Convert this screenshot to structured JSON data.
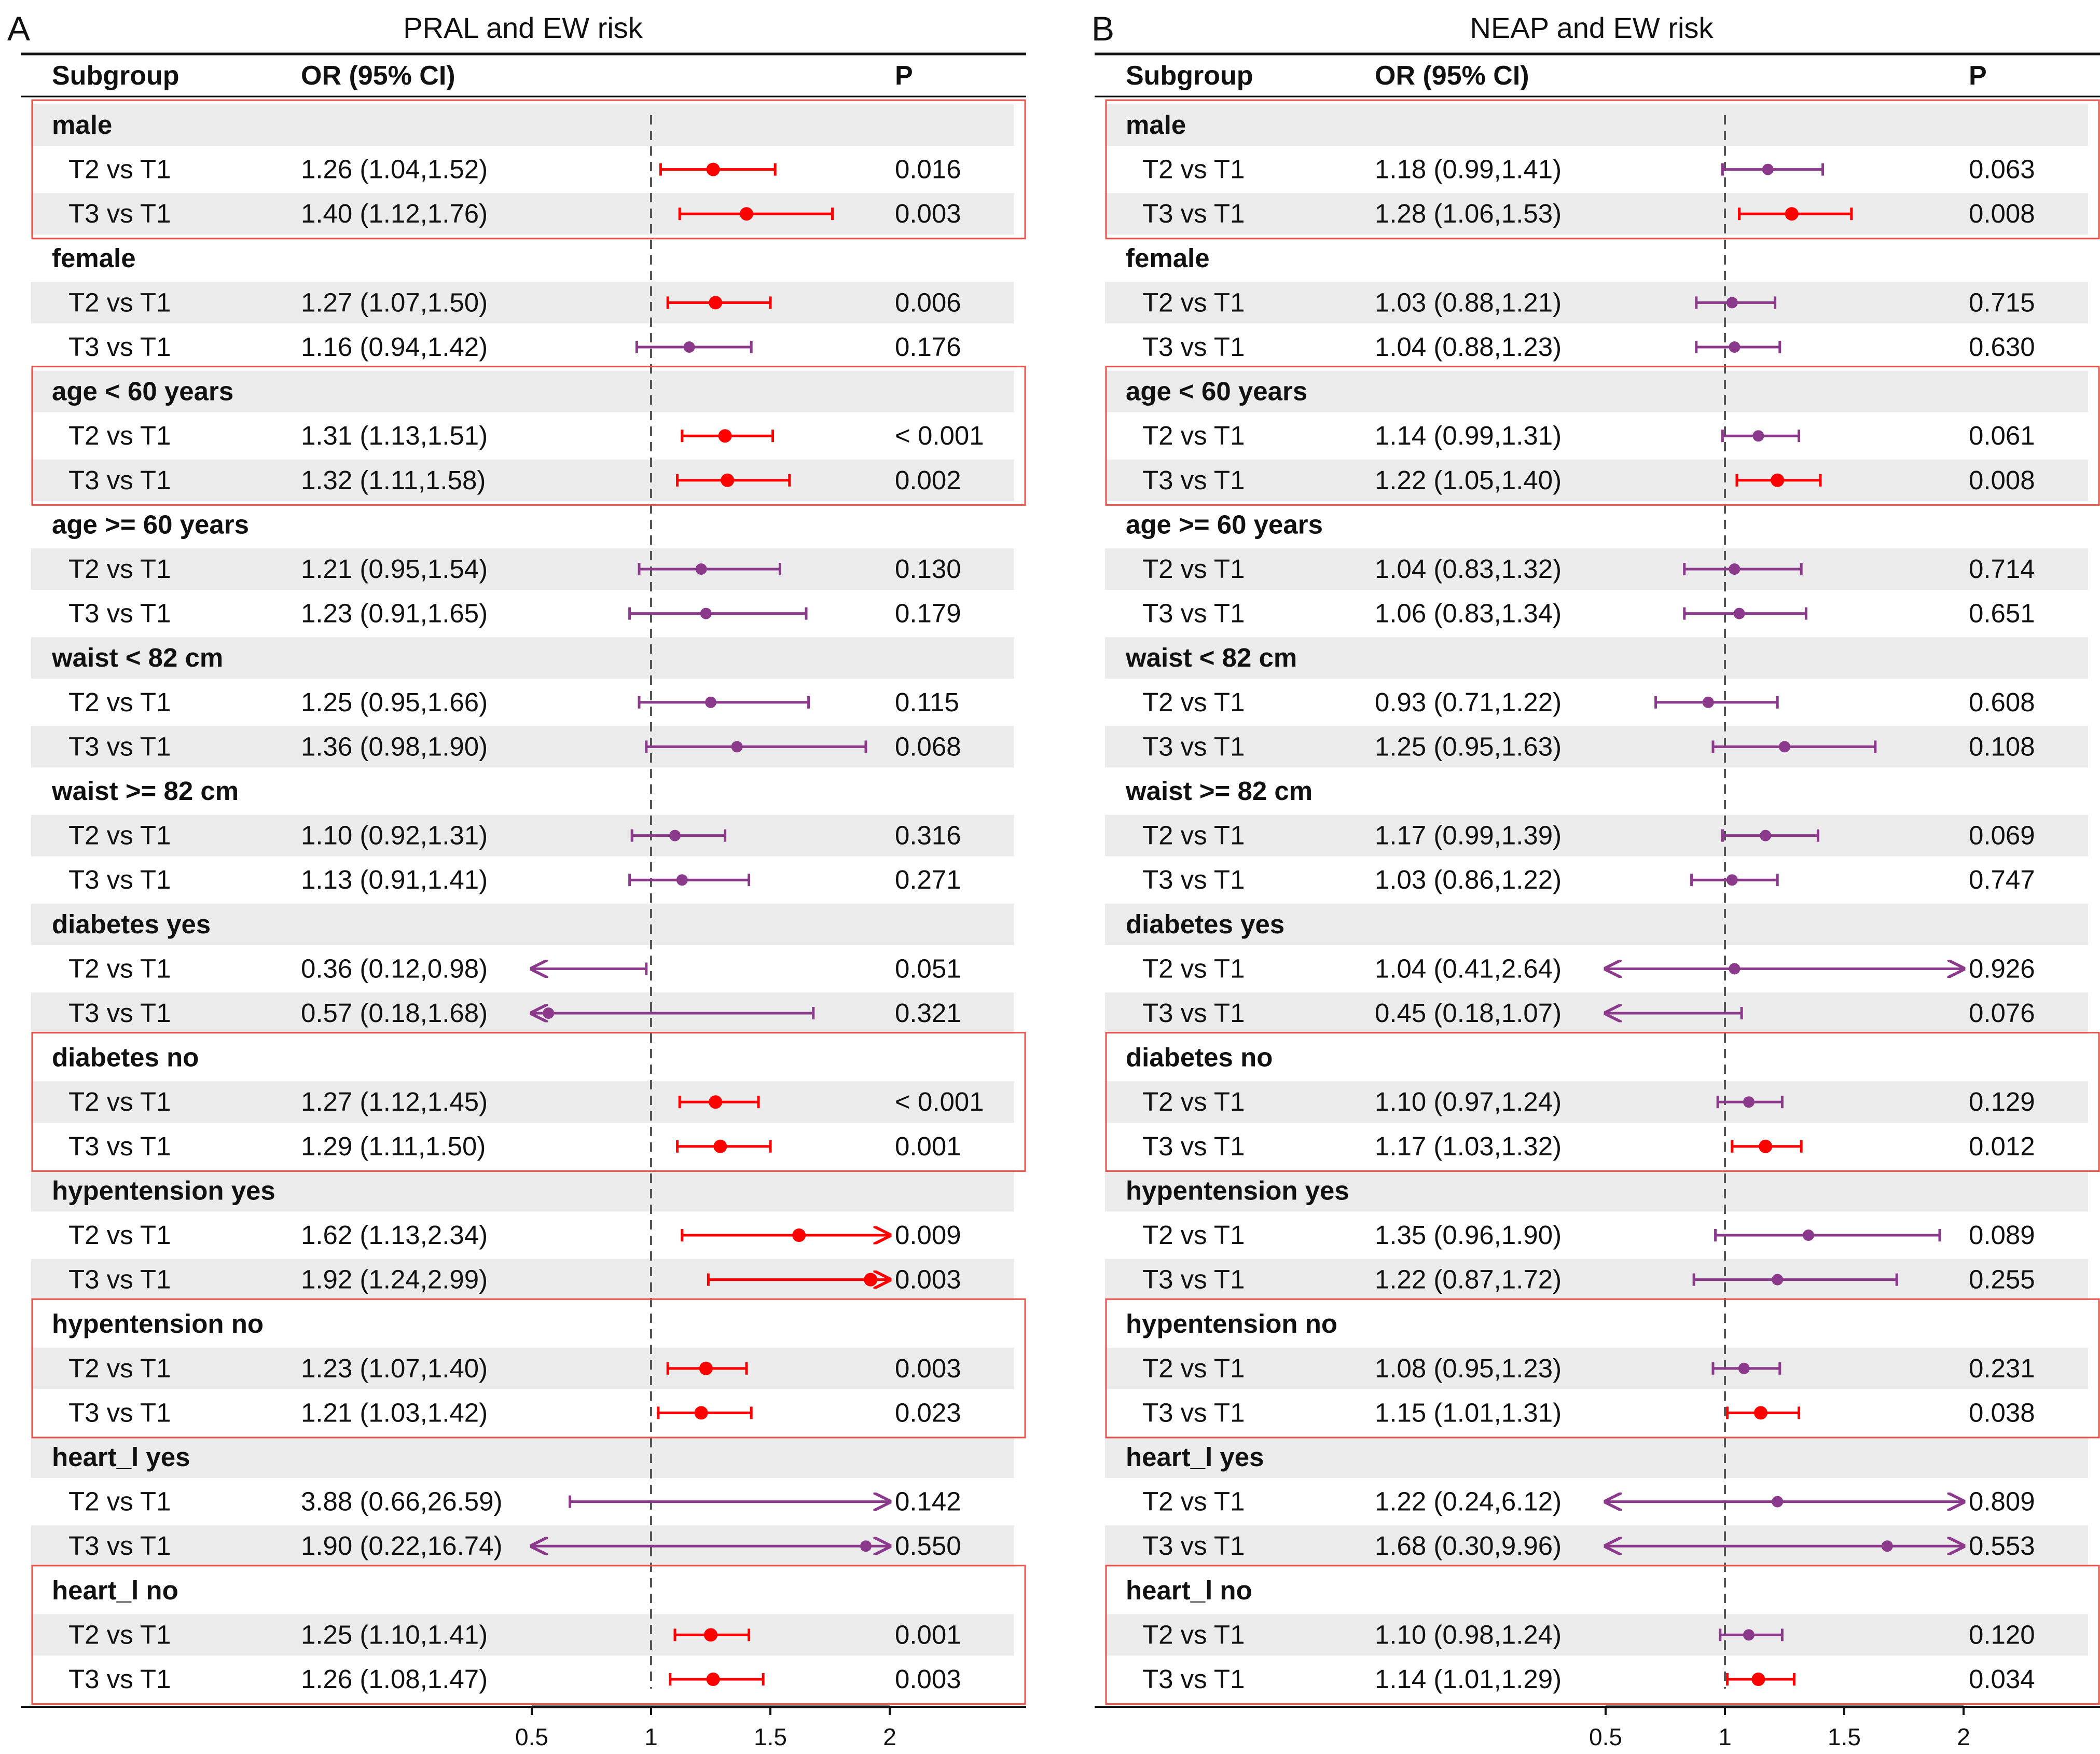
{
  "colors": {
    "significant": "#ff0000",
    "nonsignificant": "#8b3a8b",
    "band": "#ebebeb",
    "box": "#e8504a",
    "refline": "#555555"
  },
  "headers": {
    "subgroup": "Subgroup",
    "or": "OR (95% CI)",
    "p": "P"
  },
  "chart_data": [
    {
      "type": "forest",
      "panel": "A",
      "title": "PRAL and EW risk",
      "xlim": [
        0.5,
        2
      ],
      "ticks": [
        0.5,
        1,
        1.5,
        2
      ],
      "ref": 1,
      "highlighted_groups": [
        "male",
        "age < 60 years",
        "diabetes no",
        "hypentension no",
        "heart_l no"
      ],
      "groups": [
        {
          "name": "male",
          "rows": [
            {
              "label": "T2 vs T1",
              "or_text": "1.26 (1.04,1.52)",
              "p": "0.016",
              "or": 1.26,
              "lo": 1.04,
              "hi": 1.52,
              "sig": true
            },
            {
              "label": "T3 vs T1",
              "or_text": "1.40 (1.12,1.76)",
              "p": "0.003",
              "or": 1.4,
              "lo": 1.12,
              "hi": 1.76,
              "sig": true
            }
          ]
        },
        {
          "name": "female",
          "rows": [
            {
              "label": "T2 vs T1",
              "or_text": "1.27 (1.07,1.50)",
              "p": "0.006",
              "or": 1.27,
              "lo": 1.07,
              "hi": 1.5,
              "sig": true
            },
            {
              "label": "T3 vs T1",
              "or_text": "1.16 (0.94,1.42)",
              "p": "0.176",
              "or": 1.16,
              "lo": 0.94,
              "hi": 1.42,
              "sig": false
            }
          ]
        },
        {
          "name": "age < 60 years",
          "rows": [
            {
              "label": "T2 vs T1",
              "or_text": "1.31 (1.13,1.51)",
              "p": "< 0.001",
              "or": 1.31,
              "lo": 1.13,
              "hi": 1.51,
              "sig": true
            },
            {
              "label": "T3 vs T1",
              "or_text": "1.32 (1.11,1.58)",
              "p": "0.002",
              "or": 1.32,
              "lo": 1.11,
              "hi": 1.58,
              "sig": true
            }
          ]
        },
        {
          "name": "age >= 60 years",
          "rows": [
            {
              "label": "T2 vs T1",
              "or_text": "1.21 (0.95,1.54)",
              "p": "0.130",
              "or": 1.21,
              "lo": 0.95,
              "hi": 1.54,
              "sig": false
            },
            {
              "label": "T3 vs T1",
              "or_text": "1.23 (0.91,1.65)",
              "p": "0.179",
              "or": 1.23,
              "lo": 0.91,
              "hi": 1.65,
              "sig": false
            }
          ]
        },
        {
          "name": "waist < 82 cm",
          "rows": [
            {
              "label": "T2 vs T1",
              "or_text": "1.25 (0.95,1.66)",
              "p": "0.115",
              "or": 1.25,
              "lo": 0.95,
              "hi": 1.66,
              "sig": false
            },
            {
              "label": "T3 vs T1",
              "or_text": "1.36 (0.98,1.90)",
              "p": "0.068",
              "or": 1.36,
              "lo": 0.98,
              "hi": 1.9,
              "sig": false
            }
          ]
        },
        {
          "name": "waist >= 82 cm",
          "rows": [
            {
              "label": "T2 vs T1",
              "or_text": "1.10 (0.92,1.31)",
              "p": "0.316",
              "or": 1.1,
              "lo": 0.92,
              "hi": 1.31,
              "sig": false
            },
            {
              "label": "T3 vs T1",
              "or_text": "1.13 (0.91,1.41)",
              "p": "0.271",
              "or": 1.13,
              "lo": 0.91,
              "hi": 1.41,
              "sig": false
            }
          ]
        },
        {
          "name": "diabetes yes",
          "rows": [
            {
              "label": "T2 vs T1",
              "or_text": "0.36 (0.12,0.98)",
              "p": "0.051",
              "or": 0.36,
              "lo": 0.12,
              "hi": 0.98,
              "sig": false
            },
            {
              "label": "T3 vs T1",
              "or_text": "0.57 (0.18,1.68)",
              "p": "0.321",
              "or": 0.57,
              "lo": 0.18,
              "hi": 1.68,
              "sig": false
            }
          ]
        },
        {
          "name": "diabetes no",
          "rows": [
            {
              "label": "T2 vs T1",
              "or_text": "1.27 (1.12,1.45)",
              "p": "< 0.001",
              "or": 1.27,
              "lo": 1.12,
              "hi": 1.45,
              "sig": true
            },
            {
              "label": "T3 vs T1",
              "or_text": "1.29 (1.11,1.50)",
              "p": "0.001",
              "or": 1.29,
              "lo": 1.11,
              "hi": 1.5,
              "sig": true
            }
          ]
        },
        {
          "name": "hypentension yes",
          "rows": [
            {
              "label": "T2 vs T1",
              "or_text": "1.62 (1.13,2.34)",
              "p": "0.009",
              "or": 1.62,
              "lo": 1.13,
              "hi": 2.34,
              "sig": true
            },
            {
              "label": "T3 vs T1",
              "or_text": "1.92 (1.24,2.99)",
              "p": "0.003",
              "or": 1.92,
              "lo": 1.24,
              "hi": 2.99,
              "sig": true
            }
          ]
        },
        {
          "name": "hypentension no",
          "rows": [
            {
              "label": "T2 vs T1",
              "or_text": "1.23 (1.07,1.40)",
              "p": "0.003",
              "or": 1.23,
              "lo": 1.07,
              "hi": 1.4,
              "sig": true
            },
            {
              "label": "T3 vs T1",
              "or_text": "1.21 (1.03,1.42)",
              "p": "0.023",
              "or": 1.21,
              "lo": 1.03,
              "hi": 1.42,
              "sig": true
            }
          ]
        },
        {
          "name": "heart_l yes",
          "rows": [
            {
              "label": "T2 vs T1",
              "or_text": "3.88 (0.66,26.59)",
              "p": "0.142",
              "or": 3.88,
              "lo": 0.66,
              "hi": 26.59,
              "sig": false
            },
            {
              "label": "T3 vs T1",
              "or_text": "1.90 (0.22,16.74)",
              "p": "0.550",
              "or": 1.9,
              "lo": 0.22,
              "hi": 16.74,
              "sig": false
            }
          ]
        },
        {
          "name": "heart_l no",
          "rows": [
            {
              "label": "T2 vs T1",
              "or_text": "1.25 (1.10,1.41)",
              "p": "0.001",
              "or": 1.25,
              "lo": 1.1,
              "hi": 1.41,
              "sig": true
            },
            {
              "label": "T3 vs T1",
              "or_text": "1.26 (1.08,1.47)",
              "p": "0.003",
              "or": 1.26,
              "lo": 1.08,
              "hi": 1.47,
              "sig": true
            }
          ]
        }
      ]
    },
    {
      "type": "forest",
      "panel": "B",
      "title": "NEAP and EW risk",
      "xlim": [
        0.5,
        2
      ],
      "ticks": [
        0.5,
        1,
        1.5,
        2
      ],
      "ref": 1,
      "highlighted_groups": [
        "male",
        "age < 60 years",
        "diabetes no",
        "hypentension no",
        "heart_l no"
      ],
      "groups": [
        {
          "name": "male",
          "rows": [
            {
              "label": "T2 vs T1",
              "or_text": "1.18 (0.99,1.41)",
              "p": "0.063",
              "or": 1.18,
              "lo": 0.99,
              "hi": 1.41,
              "sig": false
            },
            {
              "label": "T3 vs T1",
              "or_text": "1.28 (1.06,1.53)",
              "p": "0.008",
              "or": 1.28,
              "lo": 1.06,
              "hi": 1.53,
              "sig": true
            }
          ]
        },
        {
          "name": "female",
          "rows": [
            {
              "label": "T2 vs T1",
              "or_text": "1.03 (0.88,1.21)",
              "p": "0.715",
              "or": 1.03,
              "lo": 0.88,
              "hi": 1.21,
              "sig": false
            },
            {
              "label": "T3 vs T1",
              "or_text": "1.04 (0.88,1.23)",
              "p": "0.630",
              "or": 1.04,
              "lo": 0.88,
              "hi": 1.23,
              "sig": false
            }
          ]
        },
        {
          "name": "age < 60 years",
          "rows": [
            {
              "label": "T2 vs T1",
              "or_text": "1.14 (0.99,1.31)",
              "p": "0.061",
              "or": 1.14,
              "lo": 0.99,
              "hi": 1.31,
              "sig": false
            },
            {
              "label": "T3 vs T1",
              "or_text": "1.22 (1.05,1.40)",
              "p": "0.008",
              "or": 1.22,
              "lo": 1.05,
              "hi": 1.4,
              "sig": true
            }
          ]
        },
        {
          "name": "age >= 60 years",
          "rows": [
            {
              "label": "T2 vs T1",
              "or_text": "1.04 (0.83,1.32)",
              "p": "0.714",
              "or": 1.04,
              "lo": 0.83,
              "hi": 1.32,
              "sig": false
            },
            {
              "label": "T3 vs T1",
              "or_text": "1.06 (0.83,1.34)",
              "p": "0.651",
              "or": 1.06,
              "lo": 0.83,
              "hi": 1.34,
              "sig": false
            }
          ]
        },
        {
          "name": "waist < 82 cm",
          "rows": [
            {
              "label": "T2 vs T1",
              "or_text": "0.93 (0.71,1.22)",
              "p": "0.608",
              "or": 0.93,
              "lo": 0.71,
              "hi": 1.22,
              "sig": false
            },
            {
              "label": "T3 vs T1",
              "or_text": "1.25 (0.95,1.63)",
              "p": "0.108",
              "or": 1.25,
              "lo": 0.95,
              "hi": 1.63,
              "sig": false
            }
          ]
        },
        {
          "name": "waist >= 82 cm",
          "rows": [
            {
              "label": "T2 vs T1",
              "or_text": "1.17 (0.99,1.39)",
              "p": "0.069",
              "or": 1.17,
              "lo": 0.99,
              "hi": 1.39,
              "sig": false
            },
            {
              "label": "T3 vs T1",
              "or_text": "1.03 (0.86,1.22)",
              "p": "0.747",
              "or": 1.03,
              "lo": 0.86,
              "hi": 1.22,
              "sig": false
            }
          ]
        },
        {
          "name": "diabetes yes",
          "rows": [
            {
              "label": "T2 vs T1",
              "or_text": "1.04 (0.41,2.64)",
              "p": "0.926",
              "or": 1.04,
              "lo": 0.41,
              "hi": 2.64,
              "sig": false
            },
            {
              "label": "T3 vs T1",
              "or_text": "0.45 (0.18,1.07)",
              "p": "0.076",
              "or": 0.45,
              "lo": 0.18,
              "hi": 1.07,
              "sig": false
            }
          ]
        },
        {
          "name": "diabetes no",
          "rows": [
            {
              "label": "T2 vs T1",
              "or_text": "1.10 (0.97,1.24)",
              "p": "0.129",
              "or": 1.1,
              "lo": 0.97,
              "hi": 1.24,
              "sig": false
            },
            {
              "label": "T3 vs T1",
              "or_text": "1.17 (1.03,1.32)",
              "p": "0.012",
              "or": 1.17,
              "lo": 1.03,
              "hi": 1.32,
              "sig": true
            }
          ]
        },
        {
          "name": "hypentension yes",
          "rows": [
            {
              "label": "T2 vs T1",
              "or_text": "1.35 (0.96,1.90)",
              "p": "0.089",
              "or": 1.35,
              "lo": 0.96,
              "hi": 1.9,
              "sig": false
            },
            {
              "label": "T3 vs T1",
              "or_text": "1.22 (0.87,1.72)",
              "p": "0.255",
              "or": 1.22,
              "lo": 0.87,
              "hi": 1.72,
              "sig": false
            }
          ]
        },
        {
          "name": "hypentension no",
          "rows": [
            {
              "label": "T2 vs T1",
              "or_text": "1.08 (0.95,1.23)",
              "p": "0.231",
              "or": 1.08,
              "lo": 0.95,
              "hi": 1.23,
              "sig": false
            },
            {
              "label": "T3 vs T1",
              "or_text": "1.15 (1.01,1.31)",
              "p": "0.038",
              "or": 1.15,
              "lo": 1.01,
              "hi": 1.31,
              "sig": true
            }
          ]
        },
        {
          "name": "heart_l yes",
          "rows": [
            {
              "label": "T2 vs T1",
              "or_text": "1.22 (0.24,6.12)",
              "p": "0.809",
              "or": 1.22,
              "lo": 0.24,
              "hi": 6.12,
              "sig": false
            },
            {
              "label": "T3 vs T1",
              "or_text": "1.68 (0.30,9.96)",
              "p": "0.553",
              "or": 1.68,
              "lo": 0.3,
              "hi": 9.96,
              "sig": false
            }
          ]
        },
        {
          "name": "heart_l no",
          "rows": [
            {
              "label": "T2 vs T1",
              "or_text": "1.10 (0.98,1.24)",
              "p": "0.120",
              "or": 1.1,
              "lo": 0.98,
              "hi": 1.24,
              "sig": false
            },
            {
              "label": "T3 vs T1",
              "or_text": "1.14 (1.01,1.29)",
              "p": "0.034",
              "or": 1.14,
              "lo": 1.01,
              "hi": 1.29,
              "sig": true
            }
          ]
        }
      ]
    }
  ]
}
